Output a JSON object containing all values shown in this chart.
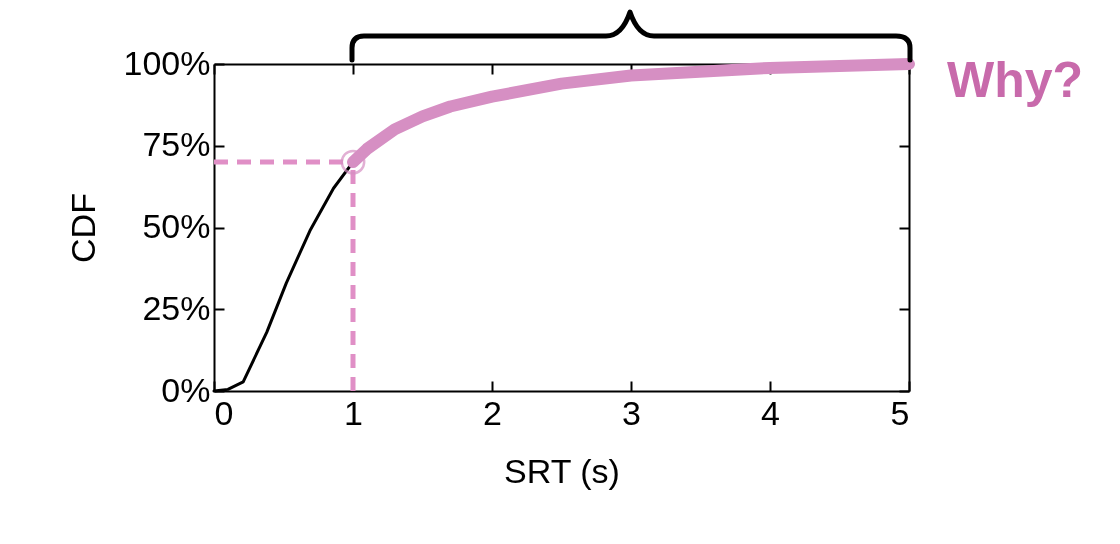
{
  "chart_data": {
    "type": "line",
    "xlabel": "SRT (s)",
    "ylabel": "CDF",
    "xlim": [
      0,
      5
    ],
    "xticks": [
      0,
      1,
      2,
      3,
      4,
      5
    ],
    "ylim": [
      0,
      100
    ],
    "yticks": [
      {
        "value": 0,
        "label": "0%"
      },
      {
        "value": 25,
        "label": "25%"
      },
      {
        "value": 50,
        "label": "50%"
      },
      {
        "value": 75,
        "label": "75%"
      },
      {
        "value": 100,
        "label": "100%"
      }
    ],
    "grid": false,
    "series": [
      {
        "color": "#000000",
        "x": [
          0,
          0.1,
          0.21,
          0.38,
          0.52,
          0.69,
          0.86,
          1
        ],
        "values": [
          0,
          0.5,
          2.8,
          18,
          33,
          49,
          62,
          70
        ]
      },
      {
        "color": "#d68fc3",
        "x": [
          1,
          1.1,
          1.3,
          1.5,
          1.7,
          2,
          2.5,
          3,
          4,
          5
        ],
        "values": [
          70,
          74,
          80,
          84,
          87,
          90,
          94,
          96.5,
          98.8,
          100
        ]
      },
      {
        "type": "scatter",
        "marker": "circle",
        "color": "#d68fc3",
        "x": [
          1
        ],
        "values": [
          70
        ]
      }
    ],
    "ref_lines": [
      {
        "axis": "y",
        "value": 70,
        "color": "#e08fc6",
        "line_style": "dashed"
      },
      {
        "axis": "x",
        "value": 1,
        "color": "#e08fc6",
        "line_style": "dashed"
      }
    ],
    "annotations": [
      {
        "text": "Why?",
        "x": 5,
        "y": 100
      }
    ]
  }
}
